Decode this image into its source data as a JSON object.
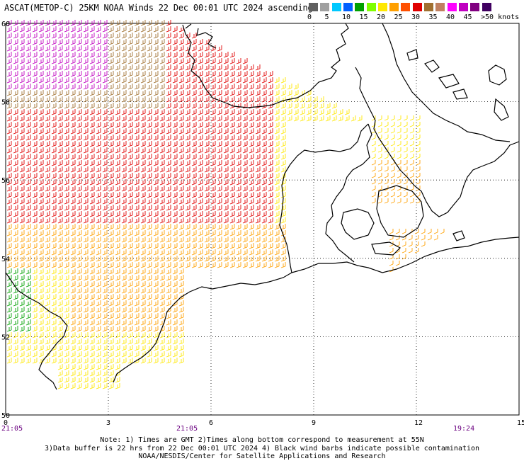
{
  "title": "ASCAT(METOP-C) 25KM NOAA Winds 22 Dec 00:01 UTC 2024 ascending",
  "colorbar": {
    "colors": [
      "#606060",
      "#a0a0a0",
      "#00c8ff",
      "#0060ff",
      "#00a000",
      "#80ff00",
      "#ffe800",
      "#ffa000",
      "#ff5000",
      "#e00000",
      "#a07030",
      "#c08060",
      "#ff00ff",
      "#c000c0",
      "#800080",
      "#400060"
    ],
    "labels": [
      "0",
      "5",
      "10",
      "15",
      "20",
      "25",
      "30",
      "35",
      "40",
      "45",
      ">50 knots"
    ]
  },
  "axes": {
    "lat_labels": [
      "50",
      "52",
      "54",
      "56",
      "58",
      "60"
    ],
    "lon_labels": [
      "0",
      "3",
      "6",
      "9",
      "12",
      "15"
    ]
  },
  "times": {
    "left": "21:05",
    "middle": "21:05",
    "right": "19:24"
  },
  "notes": {
    "line1": "Note: 1) Times are GMT 2)Times along bottom correspond to measurement at 55N",
    "line2": "3)Data buffer is 22 hrs from 22 Dec 00:01 UTC 2024 4) Black wind barbs indicate possible contamination",
    "line3": "NOAA/NESDIS/Center for Satellite Applications and Research"
  }
}
